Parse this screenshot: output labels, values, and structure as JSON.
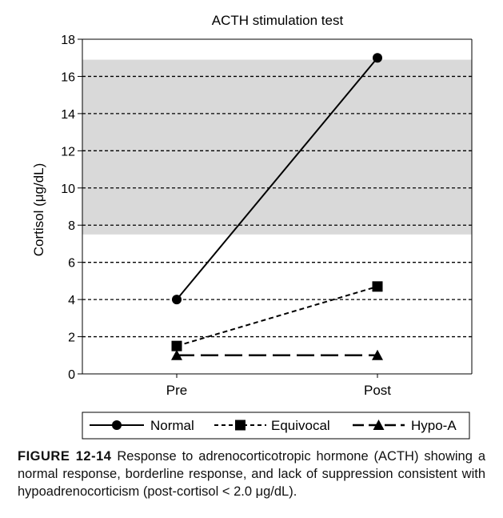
{
  "chart_data": {
    "type": "line",
    "title": "ACTH stimulation test",
    "xlabel": "",
    "ylabel": "Cortisol (μg/dL)",
    "categories": [
      "Pre",
      "Post"
    ],
    "ylim": [
      0,
      18
    ],
    "yticks": [
      "0",
      "2",
      "4",
      "6",
      "8",
      "10",
      "12",
      "14",
      "16",
      "18"
    ],
    "grid": "dashed horizontal",
    "legend_position": "bottom",
    "normal_range_band": [
      7.5,
      16.9
    ],
    "band_color": "#d9d9d9",
    "series": [
      {
        "name": "Normal",
        "marker": "circle",
        "line": "solid",
        "values": [
          4,
          17
        ]
      },
      {
        "name": "Equivocal",
        "marker": "square",
        "line": "dashed",
        "values": [
          1.5,
          4.7
        ]
      },
      {
        "name": "Hypo-A",
        "marker": "triangle",
        "line": "longdash",
        "values": [
          1.0,
          1.0
        ]
      }
    ]
  },
  "caption": {
    "figure_label": "FIGURE 12-14",
    "text": " Response to adrenocorticotropic hormone (ACTH) showing a normal response, borderline response, and lack of suppression consistent with hypoadrenocorticism (post-cortisol < 2.0 μg/dL)."
  }
}
